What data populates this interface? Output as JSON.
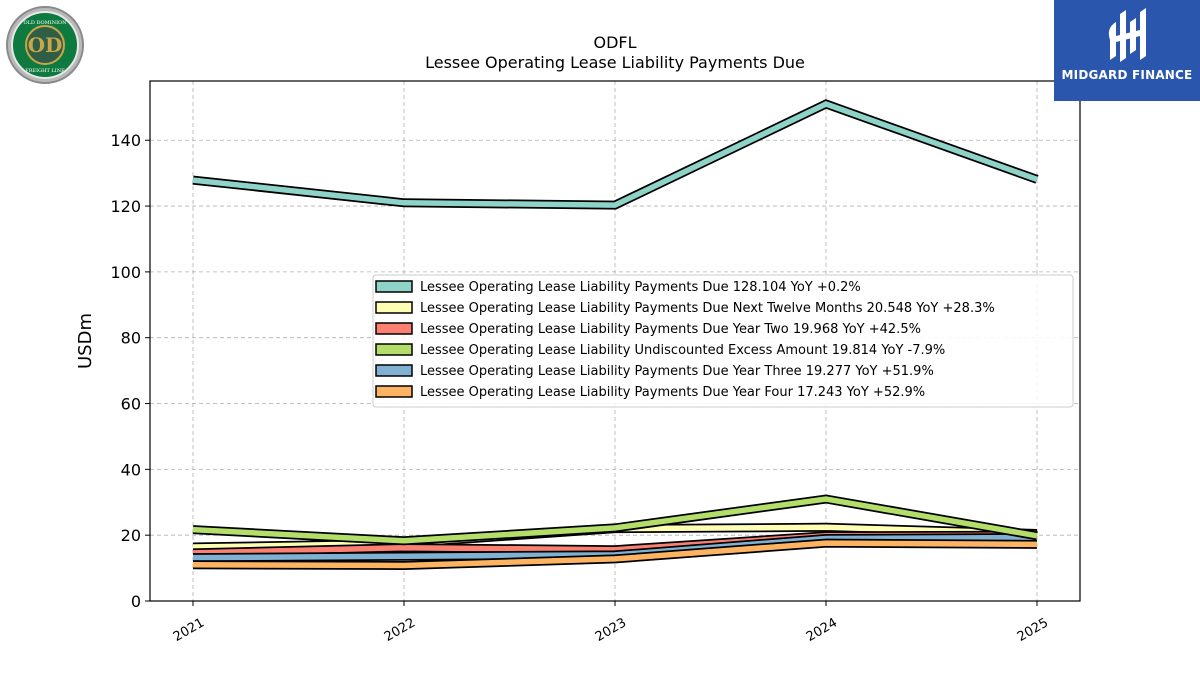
{
  "chart_data": {
    "type": "line",
    "title": "ODFL",
    "subtitle": "Lessee Operating Lease Liability Payments Due",
    "ylabel": "USDm",
    "xlabel": "",
    "categories": [
      "2021",
      "2022",
      "2023",
      "2024",
      "2025"
    ],
    "ylim": [
      0,
      158
    ],
    "yticks": [
      0,
      20,
      40,
      60,
      80,
      100,
      120,
      140
    ],
    "grid": true,
    "legend_position": "center-right",
    "series": [
      {
        "name": "Lessee Operating Lease Liability Payments Due",
        "legend": "Lessee Operating Lease Liability Payments Due  128.104 YoY +0.2%",
        "color": "#8dd3c7",
        "values": [
          127.9,
          121.0,
          120.3,
          151.0,
          128.1
        ]
      },
      {
        "name": "Lessee Operating Lease Liability Payments Due Next Twelve Months",
        "legend": "Lessee Operating Lease Liability Payments Due Next Twelve Months  20.548 YoY +28.3%",
        "color": "#ffffb3",
        "values": [
          16.4,
          17.5,
          22.0,
          22.4,
          20.5
        ]
      },
      {
        "name": "Lessee Operating Lease Liability Payments Due Year Two",
        "legend": "Lessee Operating Lease Liability Payments Due Year Two  19.968 YoY +42.5%",
        "color": "#fb8072",
        "values": [
          14.6,
          16.2,
          15.6,
          19.8,
          20.0
        ]
      },
      {
        "name": "Lessee Operating Lease Liability Undiscounted Excess Amount",
        "legend": "Lessee Operating Lease Liability Undiscounted Excess Amount  19.814 YoY -7.9%",
        "color": "#b3de69",
        "values": [
          21.7,
          18.3,
          22.2,
          31.0,
          19.8
        ]
      },
      {
        "name": "Lessee Operating Lease Liability Payments Due Year Three",
        "legend": "Lessee Operating Lease Liability Payments Due Year Three  19.277 YoY +51.9%",
        "color": "#80b1d3",
        "values": [
          13.2,
          13.6,
          14.0,
          19.0,
          19.3
        ]
      },
      {
        "name": "Lessee Operating Lease Liability Payments Due Year Four",
        "legend": "Lessee Operating Lease Liability Payments Due Year Four  17.243 YoY +52.9%",
        "color": "#fdb462",
        "values": [
          11.0,
          10.8,
          12.8,
          17.6,
          17.2
        ]
      }
    ]
  },
  "logos": {
    "left_text": "OLD DOMINION FREIGHT LINE",
    "left_monogram": "OD",
    "right_text": "MIDGARD FINANCE"
  },
  "colors": {
    "brand_blue": "#2a57ad",
    "logo_green": "#0f7a3f",
    "logo_gold": "#c9a64b"
  }
}
